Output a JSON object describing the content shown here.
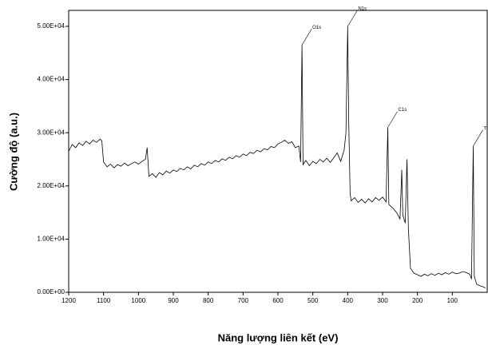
{
  "chart_data": {
    "type": "line",
    "x_label": "Năng lượng liên kết (eV)",
    "y_label": "Cường độ (a.u.)",
    "xlim": [
      1200,
      0
    ],
    "ylim": [
      0,
      53000
    ],
    "xticks": [
      1200,
      1100,
      1000,
      900,
      800,
      700,
      600,
      500,
      400,
      300,
      200,
      100
    ],
    "yticks": [
      {
        "value": 0,
        "label": "0.00E+00"
      },
      {
        "value": 10000,
        "label": "1.00E+04"
      },
      {
        "value": 20000,
        "label": "2.00E+04"
      },
      {
        "value": 30000,
        "label": "3.00E+04"
      },
      {
        "value": 40000,
        "label": "4.00E+04"
      },
      {
        "value": 50000,
        "label": "5.00E+04"
      }
    ],
    "x": [
      1200,
      1190,
      1180,
      1170,
      1160,
      1150,
      1140,
      1130,
      1120,
      1110,
      1105,
      1100,
      1090,
      1080,
      1070,
      1060,
      1050,
      1040,
      1030,
      1020,
      1010,
      1000,
      990,
      980,
      975,
      970,
      960,
      950,
      940,
      930,
      920,
      910,
      900,
      890,
      880,
      870,
      860,
      850,
      840,
      830,
      820,
      810,
      800,
      790,
      780,
      770,
      760,
      750,
      740,
      730,
      720,
      710,
      700,
      690,
      680,
      670,
      660,
      650,
      640,
      630,
      620,
      610,
      600,
      590,
      580,
      570,
      560,
      550,
      540,
      535,
      531,
      528,
      520,
      510,
      500,
      490,
      480,
      470,
      460,
      450,
      440,
      430,
      420,
      410,
      405,
      400,
      397,
      393,
      390,
      380,
      370,
      360,
      350,
      340,
      330,
      320,
      310,
      300,
      290,
      285,
      282,
      270,
      260,
      250,
      245,
      242,
      235,
      230,
      226,
      220,
      210,
      200,
      190,
      180,
      170,
      160,
      150,
      140,
      130,
      120,
      110,
      100,
      90,
      80,
      70,
      60,
      50,
      45,
      40,
      37,
      30,
      20,
      10,
      5
    ],
    "series": [
      {
        "color": "#000000",
        "values": [
          26500,
          27800,
          27200,
          28100,
          27600,
          28400,
          27900,
          28600,
          28200,
          28800,
          28500,
          24500,
          23600,
          24100,
          23400,
          24000,
          23700,
          24300,
          23800,
          24200,
          24500,
          24100,
          24600,
          25000,
          27200,
          21800,
          22300,
          21600,
          22500,
          22100,
          22800,
          22400,
          23000,
          22700,
          23300,
          23000,
          23600,
          23200,
          23900,
          23600,
          24200,
          23900,
          24500,
          24200,
          24800,
          24500,
          25100,
          24800,
          25400,
          25100,
          25700,
          25400,
          26000,
          25700,
          26300,
          26100,
          26700,
          26400,
          27000,
          26800,
          27400,
          27200,
          27900,
          28200,
          28600,
          28000,
          28300,
          27200,
          27500,
          24500,
          46500,
          24000,
          24800,
          23800,
          24600,
          24200,
          25000,
          24500,
          25200,
          24400,
          25300,
          26200,
          24600,
          26800,
          30000,
          50000,
          32000,
          18500,
          17200,
          17800,
          16900,
          17500,
          16800,
          17600,
          17000,
          17800,
          17300,
          17900,
          17000,
          31000,
          16500,
          15800,
          15000,
          13800,
          23000,
          14500,
          13000,
          25000,
          12000,
          4500,
          3600,
          3300,
          3000,
          3400,
          3100,
          3500,
          3200,
          3600,
          3300,
          3700,
          3400,
          3800,
          3500,
          3600,
          3900,
          3700,
          3400,
          2500,
          27500,
          3000,
          1500,
          1200,
          1000,
          800
        ]
      }
    ],
    "annotations": [
      {
        "text": "O1s",
        "x": 531
      },
      {
        "text": "N1s",
        "x": 400
      },
      {
        "text": "C1s",
        "x": 285
      },
      {
        "text": "Ti",
        "x": 40
      }
    ]
  }
}
